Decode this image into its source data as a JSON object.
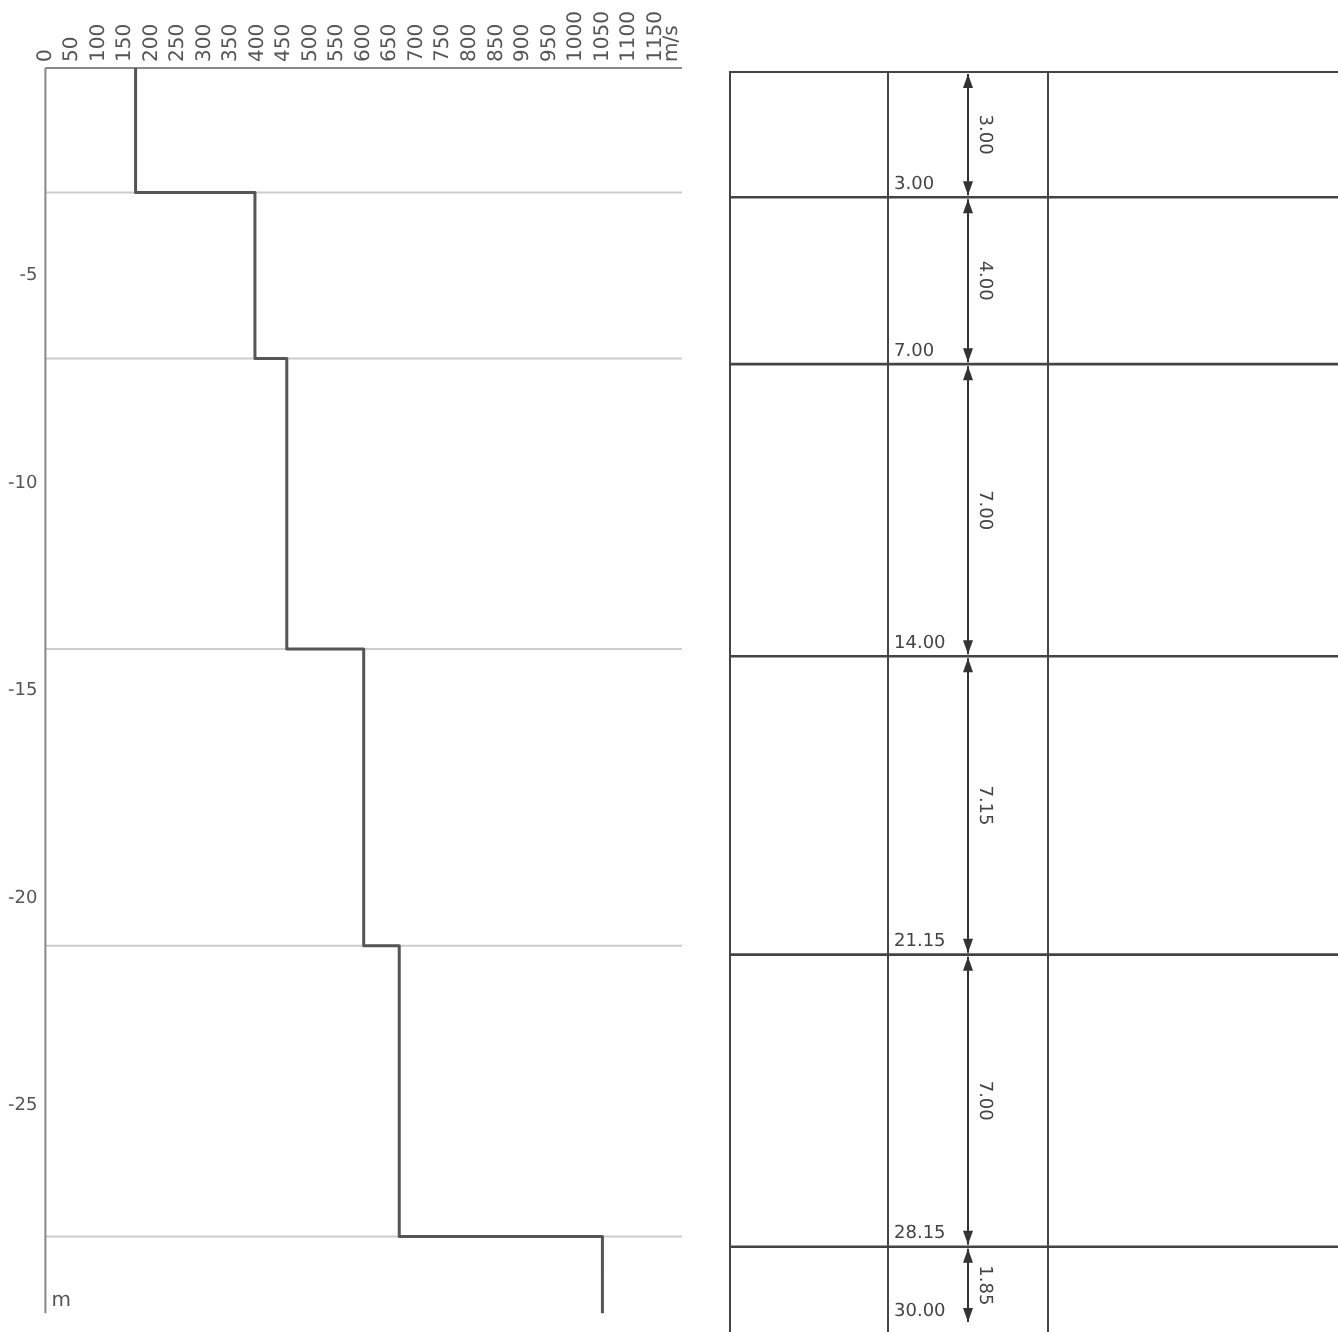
{
  "chart_data": [
    {
      "type": "line",
      "x2label": "m/s",
      "ylabel": "m",
      "x": [
        170,
        170,
        395,
        395,
        455,
        455,
        600,
        600,
        667,
        667,
        1050,
        1050
      ],
      "series": [
        {
          "color": "#555555",
          "values": [
            0,
            -3,
            -3,
            -7,
            -7,
            -14,
            -14,
            -21.15,
            -21.15,
            -28.15,
            -28.15,
            -30
          ]
        }
      ],
      "xlim": [
        0,
        1200
      ],
      "xticks": [
        0,
        50,
        100,
        150,
        200,
        250,
        300,
        350,
        400,
        450,
        500,
        550,
        600,
        650,
        700,
        750,
        800,
        850,
        900,
        950,
        1000,
        1050,
        1100,
        1150
      ],
      "ylim": [
        -30,
        0
      ],
      "yticks": [
        -25,
        -20,
        -15,
        -10,
        -5
      ],
      "ref_lines": [
        {
          "axis": "y",
          "value": -3,
          "color": "#cccccc"
        },
        {
          "axis": "y",
          "value": -7,
          "color": "#cccccc"
        },
        {
          "axis": "y",
          "value": -14,
          "color": "#cccccc"
        },
        {
          "axis": "y",
          "value": -21.15,
          "color": "#cccccc"
        },
        {
          "axis": "y",
          "value": -28.15,
          "color": "#cccccc"
        }
      ],
      "marker": "none",
      "line_style": "solid",
      "legend": false
    },
    {
      "type": "other",
      "color": "#444444",
      "values": [
        3,
        4,
        7,
        7.15,
        7,
        1.85
      ],
      "value_labels": [
        "3.00",
        "4.00",
        "7.00",
        "7.15",
        "7.00",
        "1.85"
      ],
      "annotations": [
        "3.00",
        "7.00",
        "14.00",
        "21.15",
        "28.15",
        "30.00"
      ]
    }
  ]
}
